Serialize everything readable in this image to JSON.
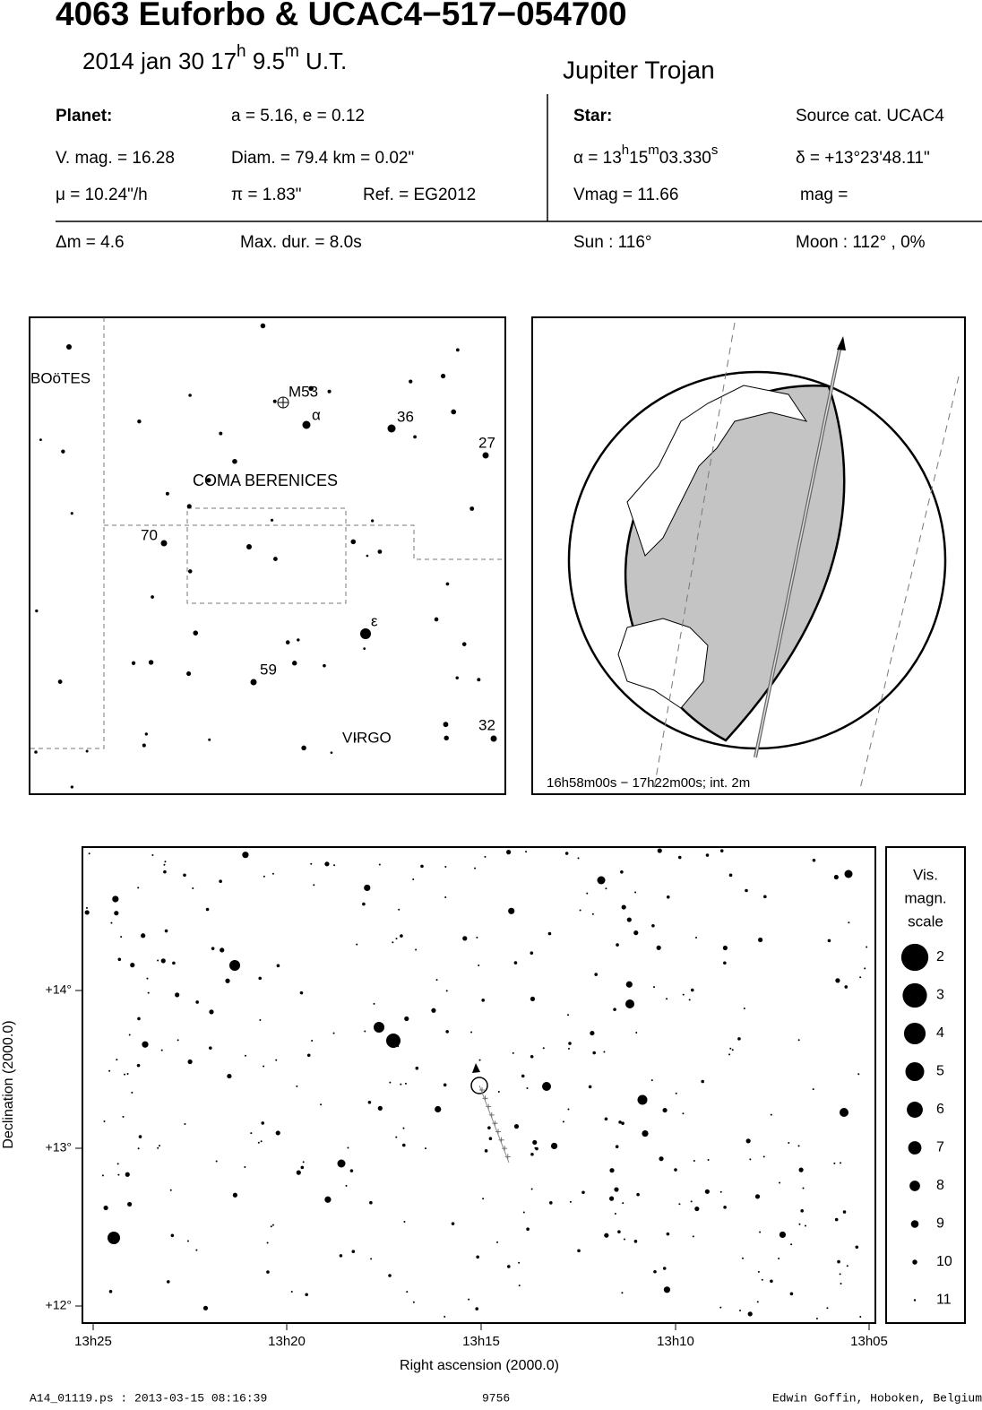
{
  "header": {
    "title": "4063 Euforbo  &  UCAC4−517−054700",
    "date_time": [
      "2014 jan 30  17",
      "h",
      " 9.5",
      "m",
      " U.T."
    ],
    "object_class": "Jupiter Trojan"
  },
  "planet": {
    "heading": "Planet:",
    "orbit": "a = 5.16, e = 0.12",
    "vmag": "V. mag. = 16.28",
    "diameter": "Diam. = 79.4 km = 0.02\"",
    "motion": "μ =  10.24\"/h",
    "parallax": "π =  1.83\"",
    "reference": "Ref. = EG2012"
  },
  "star": {
    "heading": "Star:",
    "source": "Source cat.  UCAC4",
    "ra": [
      "α = 13",
      "h",
      "15",
      "m",
      "03.330",
      "s"
    ],
    "dec": "δ = +13°23'48.11\"",
    "vmag": "Vmag = 11.66",
    "mag": "mag ="
  },
  "event": {
    "delta_mag": "Δm = 4.6",
    "max_duration": "Max. dur. = 8.0s",
    "sun": "Sun : 116°",
    "moon": "Moon : 112° ,  0%"
  },
  "finder_map": {
    "labels": [
      "BOöTES",
      "M53",
      "α",
      "36",
      "27",
      "COMA BERENICES",
      "70",
      "ε",
      "59",
      "VIRGO",
      "32"
    ]
  },
  "globe": {
    "time_range": "16h58m00s − 17h22m00s; int.  2m"
  },
  "star_chart": {
    "y_ticks": [
      "+14°",
      "+13°",
      "+12°"
    ],
    "x_ticks": [
      "13h25",
      "13h20",
      "13h15",
      "13h10",
      "13h05"
    ],
    "x_label": "Right ascension (2000.0)",
    "y_label": "Declination (2000.0)"
  },
  "magnitude_scale": {
    "title": [
      "Vis.",
      "magn.",
      "scale"
    ],
    "magnitudes": [
      2,
      3,
      4,
      5,
      6,
      7,
      8,
      9,
      10,
      11
    ]
  },
  "footer": {
    "file": "A14_01119.ps : 2013-03-15 08:16:39",
    "number": "9756",
    "author": "Edwin Goffin, Hoboken, Belgium"
  }
}
